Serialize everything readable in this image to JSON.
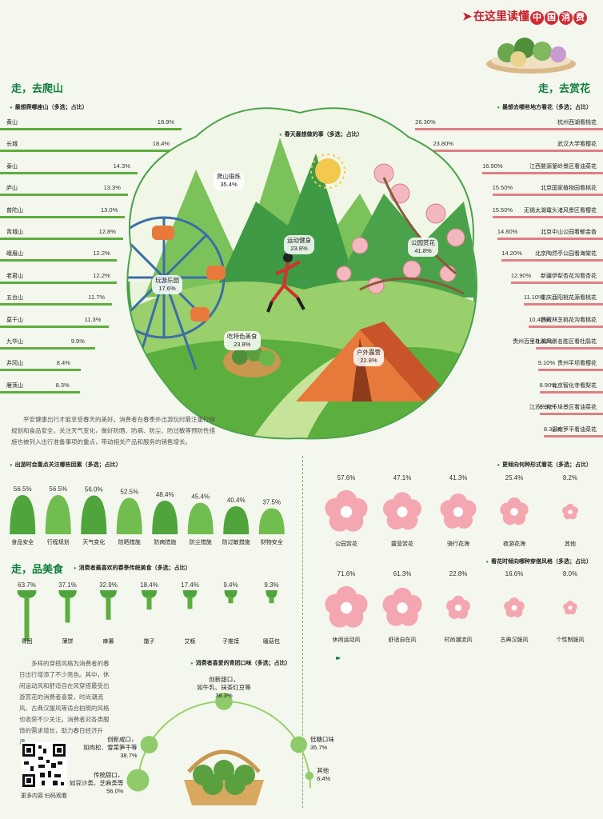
{
  "brand": {
    "arrow": "➤",
    "prefix": "在这里读懂",
    "chars": [
      "中",
      "国",
      "消",
      "费"
    ]
  },
  "sections": {
    "hike": "走，去爬山",
    "flower": "走，去赏花",
    "food": "走，品美食"
  },
  "colors": {
    "green": "#5cae3d",
    "pink": "#e07e86",
    "dark_green": "#0f7e3c",
    "brand_red": "#c81e2a"
  },
  "paragraphs": {
    "p1": "平安健康出行才能享受春天的美好。消费者在春季外出游玩时最注重行程规划和食品安全，关注天气变化，做好防晒、防病、防尘、防过敏等预防性措施也被列入出行准备事项的重点，带动相关产品和服务的销售增长。",
    "p2": "多样的穿搭风格为消费者的春日出行增添了不少亮色。其中，休闲运动风和舒适自在风穿搭最受出游赏花的消费者喜爱，时尚潮流风、古典汉服风等适合拍照的风格也收获不少关注。消费者对各类服饰的需求增长，助力春日经济升温。"
  },
  "qr_caption": "更多内容 扫码观看",
  "footer_dots": "▸▸",
  "chart_data": [
    {
      "type": "bar",
      "orientation": "horizontal",
      "title": "最想爬哪座山（多选；占比）",
      "categories": [
        "黄山",
        "长城",
        "泰山",
        "庐山",
        "普陀山",
        "青城山",
        "峨眉山",
        "老君山",
        "五台山",
        "莫干山",
        "九华山",
        "井冈山",
        "雁荡山"
      ],
      "values": [
        18.9,
        18.4,
        14.3,
        13.3,
        13.0,
        12.8,
        12.2,
        12.2,
        11.7,
        11.3,
        9.9,
        8.4,
        8.3
      ],
      "labels": [
        "18.9%",
        "18.4%",
        "14.3%",
        "13.3%",
        "13.0%",
        "12.8%",
        "12.2%",
        "12.2%",
        "11.7%",
        "11.3%",
        "9.9%",
        "8.4%",
        "8.3%"
      ]
    },
    {
      "type": "bar",
      "orientation": "horizontal",
      "title": "最想去哪些地方看花（多选；占比）",
      "categories": [
        "杭州西湖看桃花",
        "武汉大学看樱花",
        "江西婺源篁岭景区看油菜花",
        "北京国家植物园看桃花",
        "无锡太湖鼋头渚风景区看樱花",
        "北京中山公园看郁金香",
        "北京陶然亭公园看海棠花",
        "新疆伊犁杏花沟看杏花",
        "重庆酉阳桃花源看桃花",
        "西藏林芝桃花沟看桃花",
        "贵州百里杜鹃风景名胜区看杜鹃花",
        "贵州平坝看樱花",
        "北京智化寺看梨花",
        "江苏兴化千垛景区看油菜花",
        "云南罗平看油菜花"
      ],
      "values": [
        26.3,
        23.8,
        16.9,
        15.5,
        15.5,
        14.8,
        14.2,
        12.9,
        11.1,
        10.4,
        9.4,
        9.1,
        8.9,
        8.9,
        8.3
      ],
      "labels": [
        "26.30%",
        "23.80%",
        "16.90%",
        "15.50%",
        "15.50%",
        "14.80%",
        "14.20%",
        "12.90%",
        "11.10%",
        "10.40%",
        "9.40%",
        "9.10%",
        "8.90%",
        "8.90%",
        "8.30%"
      ]
    },
    {
      "type": "scatter",
      "title": "春天最想做的事（多选；占比）",
      "items": [
        {
          "name": "爬山锻炼",
          "value": 35.4,
          "label": "35.4%"
        },
        {
          "name": "运动健身",
          "value": 23.8,
          "label": "23.8%"
        },
        {
          "name": "公园赏花",
          "value": 41.8,
          "label": "41.8%"
        },
        {
          "name": "玩游乐园",
          "value": 17.6,
          "label": "17.6%"
        },
        {
          "name": "吃特色美食",
          "value": 23.8,
          "label": "23.8%"
        },
        {
          "name": "户外露营",
          "value": 22.8,
          "label": "22.8%"
        }
      ]
    },
    {
      "type": "bar",
      "title": "出游时会重点关注哪些因素（多选；占比）",
      "categories": [
        "食品安全",
        "行程规划",
        "天气变化",
        "防晒措施",
        "防病措施",
        "防尘措施",
        "防过敏措施",
        "财物安全"
      ],
      "values": [
        56.5,
        56.5,
        56.0,
        52.5,
        48.4,
        45.4,
        40.4,
        37.5
      ],
      "labels": [
        "56.5%",
        "56.5%",
        "56.0%",
        "52.5%",
        "48.4%",
        "45.4%",
        "40.4%",
        "37.5%"
      ]
    },
    {
      "type": "bar",
      "title": "更倾向何种形式看花（多选；占比）",
      "categories": [
        "公园赏花",
        "露营赏花",
        "骑行花海",
        "夜游花海",
        "其他"
      ],
      "values": [
        57.6,
        47.1,
        41.3,
        25.4,
        8.2
      ],
      "labels": [
        "57.6%",
        "47.1%",
        "41.3%",
        "25.4%",
        "8.2%"
      ]
    },
    {
      "type": "bar",
      "title": "看花时倾向哪种穿搭风格（多选；占比）",
      "categories": [
        "休闲运动风",
        "舒适自在风",
        "时尚潮流风",
        "古典汉服风",
        "个性制服风"
      ],
      "values": [
        71.6,
        61.3,
        22.8,
        16.6,
        8.0
      ],
      "labels": [
        "71.6%",
        "61.3%",
        "22.8%",
        "16.6%",
        "8.0%"
      ]
    },
    {
      "type": "bar",
      "title": "消费者最喜欢的春季传统美食（多选；占比）",
      "categories": [
        "青团",
        "薄饼",
        "麻薯",
        "馓子",
        "艾粄",
        "子推馍",
        "暖菇包"
      ],
      "values": [
        63.7,
        37.1,
        32.9,
        18.4,
        17.4,
        9.4,
        9.3
      ],
      "labels": [
        "63.7%",
        "37.1%",
        "32.9%",
        "18.4%",
        "17.4%",
        "9.4%",
        "9.3%"
      ]
    },
    {
      "type": "scatter",
      "title": "消费者喜爱的青团口味（多选；占比）",
      "items": [
        {
          "name": "创新甜口，如牛乳、抹茶红豆等",
          "value": 38.3,
          "label": "38.3%"
        },
        {
          "name": "创新咸口，如肉松、雪菜笋干等",
          "value": 38.7,
          "label": "38.7%"
        },
        {
          "name": "低糖口味",
          "value": 35.7,
          "label": "35.7%"
        },
        {
          "name": "传统甜口，如豆沙类、芝麻类等",
          "value": 56.0,
          "label": "56.0%"
        },
        {
          "name": "其他",
          "value": 6.4,
          "label": "6.4%"
        }
      ]
    }
  ]
}
